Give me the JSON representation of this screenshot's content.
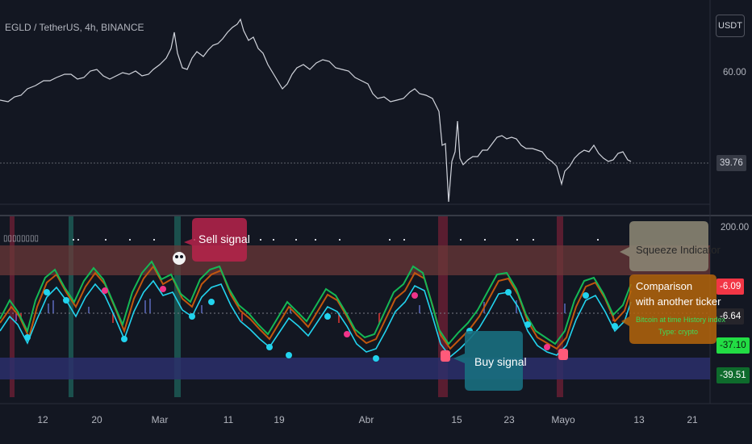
{
  "header": {
    "symbol": "EGLD / TetherUS, 4h, BINANCE",
    "currency": "USDT"
  },
  "price_axis": {
    "tick_60": "60.00",
    "last_price": "39.76"
  },
  "indicator": {
    "title_text": "▯▯▯▯▯▯▯▯",
    "axis_top": "200.00",
    "values": [
      "-6.09",
      "-6.64",
      "-37.10",
      "-39.51"
    ],
    "value_colors": [
      "#f23645",
      "#26252b",
      "#22dd44",
      "#0e6b2c"
    ]
  },
  "annotations": {
    "sell": "Sell signal",
    "buy": "Buy signal",
    "squeeze": "Squeeze Indicator",
    "comparison_line1": "Comparison",
    "comparison_line2": "with another ticker",
    "overlay_line1": "Bitcoin at time History index",
    "overlay_line2": "Type: crypto"
  },
  "x_axis": {
    "labels": [
      "12",
      "20",
      "Mar",
      "11",
      "19",
      "Abr",
      "15",
      "23",
      "Mayo",
      "13",
      "21"
    ]
  },
  "colors": {
    "background": "#131722",
    "up_line": "#15b855",
    "down_line": "#c2570e",
    "signal_line": "#22d3ee",
    "overbought_band": "#6b3838",
    "oversold_band": "#2b2f6b"
  }
}
